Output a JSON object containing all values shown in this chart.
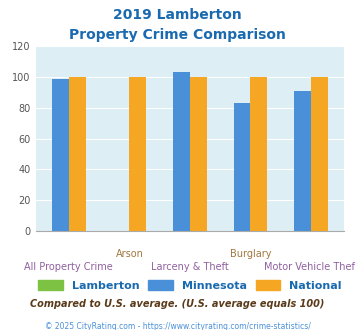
{
  "title_line1": "2019 Lamberton",
  "title_line2": "Property Crime Comparison",
  "groups": [
    "All Property Crime",
    "Arson",
    "Larceny & Theft",
    "Burglary",
    "Motor Vehicle Theft"
  ],
  "upper_labels": [
    [
      1,
      "Arson"
    ],
    [
      3,
      "Burglary"
    ]
  ],
  "lower_labels": [
    [
      0,
      "All Property Crime"
    ],
    [
      2,
      "Larceny & Theft"
    ],
    [
      4,
      "Motor Vehicle Theft"
    ]
  ],
  "lamberton": [
    0,
    0,
    0,
    0,
    0
  ],
  "minnesota": [
    99,
    0,
    103,
    83,
    91
  ],
  "national": [
    100,
    100,
    100,
    100,
    100
  ],
  "lamberton_color": "#7dc242",
  "minnesota_color": "#4a90d9",
  "national_color": "#f5a623",
  "ylim": [
    0,
    120
  ],
  "yticks": [
    0,
    20,
    40,
    60,
    80,
    100,
    120
  ],
  "plot_bg_color": "#ddeef5",
  "fig_bg_color": "#ffffff",
  "title_color": "#1a6ab0",
  "upper_label_color": "#a07840",
  "lower_label_color": "#9060a0",
  "legend_label_color": "#1a6ab0",
  "subtitle_color": "#5a3a1a",
  "footer_color": "#4a90d9",
  "subtitle_text": "Compared to U.S. average. (U.S. average equals 100)",
  "footer_text": "© 2025 CityRating.com - https://www.cityrating.com/crime-statistics/",
  "legend_entries": [
    "Lamberton",
    "Minnesota",
    "National"
  ],
  "bar_width": 0.28
}
